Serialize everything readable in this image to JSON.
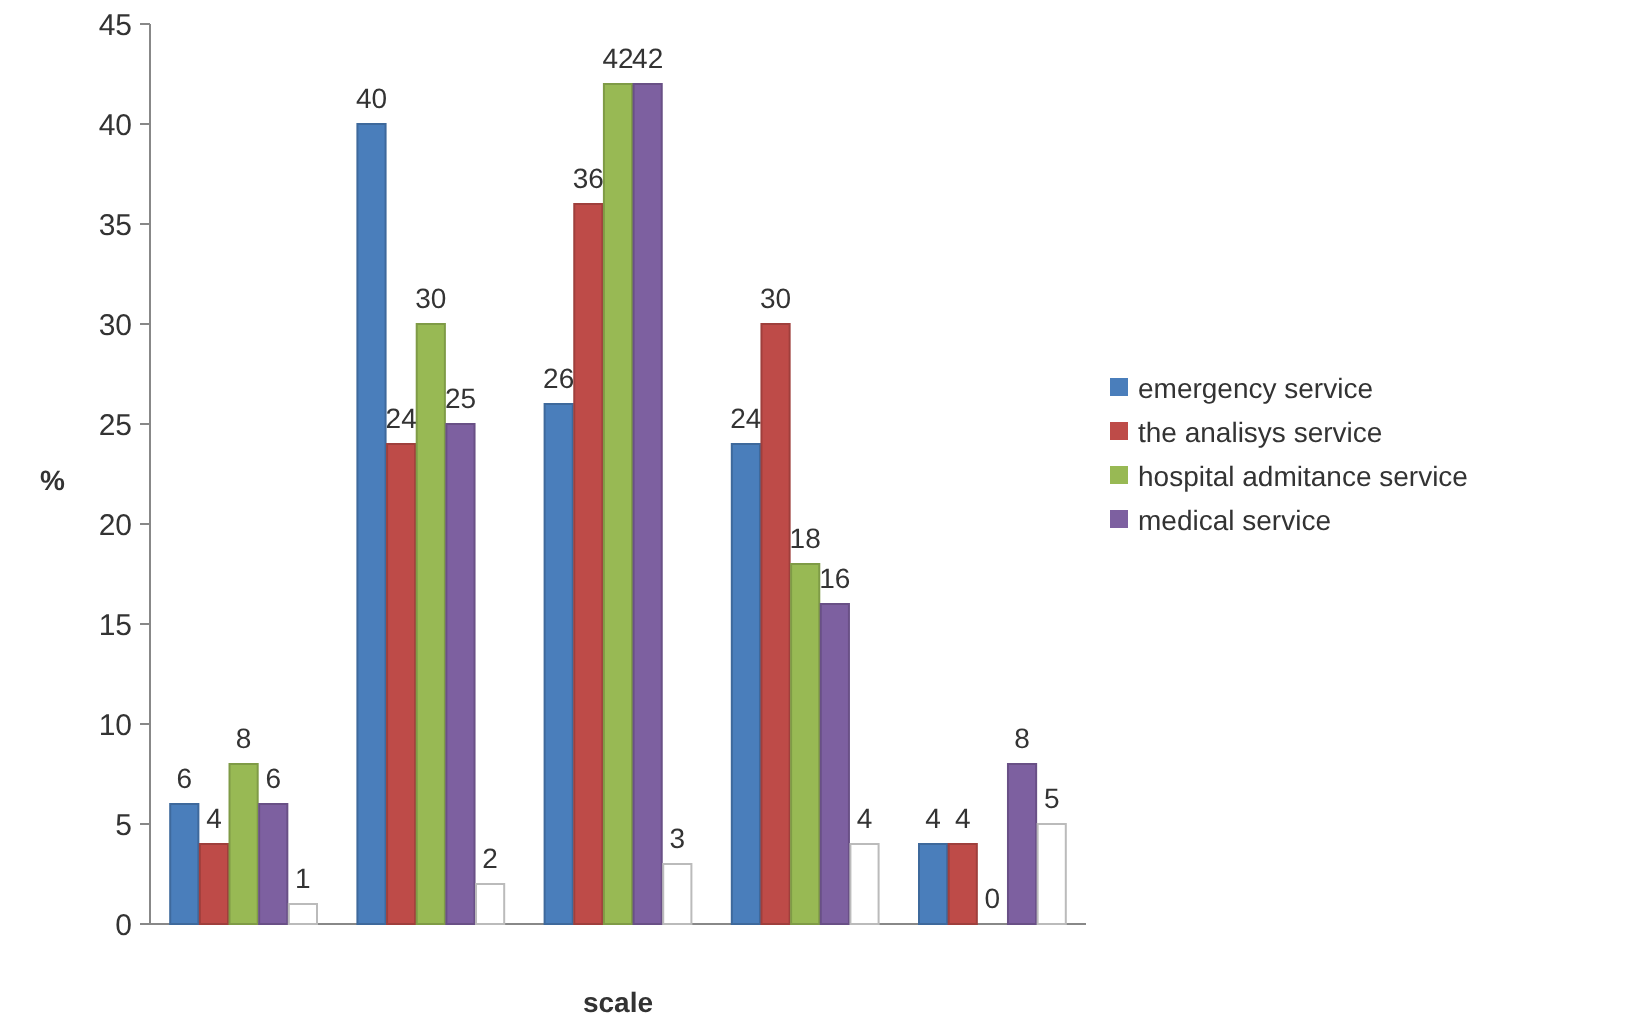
{
  "chart_data": {
    "type": "bar",
    "xlabel": "scale",
    "ylabel": "%",
    "categories": [
      null,
      null,
      null,
      null,
      null
    ],
    "series": [
      {
        "name": "emergency service",
        "color": "#4a7ebb",
        "values": [
          6,
          40,
          26,
          24,
          4
        ]
      },
      {
        "name": "the analisys service",
        "color": "#be4b48",
        "values": [
          4,
          24,
          36,
          30,
          4
        ]
      },
      {
        "name": "hospital admitance service",
        "color": "#98b954",
        "values": [
          8,
          30,
          42,
          18,
          0
        ]
      },
      {
        "name": "medical service",
        "color": "#7d60a0",
        "values": [
          6,
          25,
          42,
          16,
          8
        ]
      },
      {
        "color": "#ffffff",
        "values": [
          1,
          2,
          3,
          4,
          5
        ]
      }
    ],
    "ylim": [
      0,
      45
    ],
    "yticks": [
      0,
      5,
      10,
      15,
      20,
      25,
      30,
      35,
      40,
      45
    ],
    "data_labels": true,
    "legend": "right",
    "grid": false
  }
}
